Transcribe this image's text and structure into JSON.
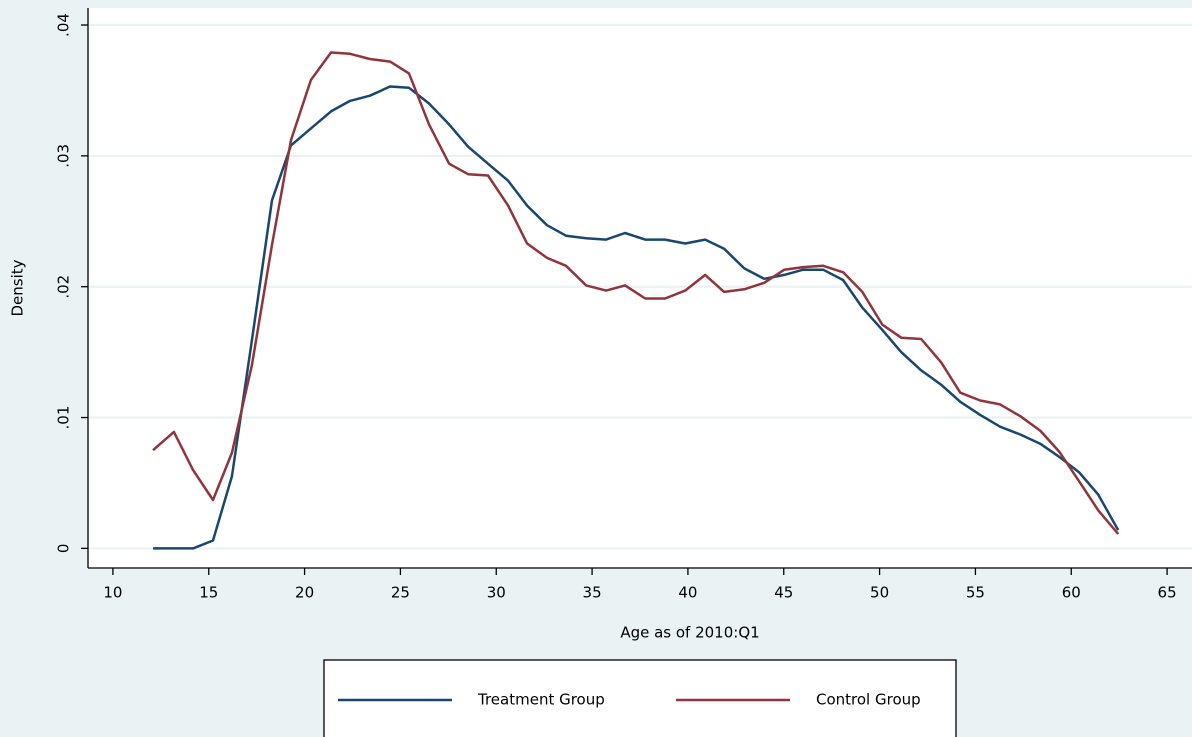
{
  "chart_data": {
    "type": "line",
    "x_label": "Age as of 2010:Q1",
    "y_label": "Density",
    "x": [
      12.09,
      13.18,
      14.18,
      15.22,
      16.21,
      17.25,
      18.3,
      19.29,
      20.33,
      21.38,
      22.37,
      23.41,
      24.46,
      25.45,
      26.49,
      27.54,
      28.53,
      29.57,
      30.62,
      31.61,
      32.65,
      33.64,
      34.69,
      35.73,
      36.72,
      37.77,
      38.81,
      39.86,
      40.9,
      41.89,
      42.94,
      43.98,
      45.03,
      46.01,
      47.06,
      48.1,
      49.1,
      50.14,
      51.13,
      52.17,
      53.22,
      54.21,
      55.25,
      56.29,
      57.34,
      58.38,
      59.37,
      60.42,
      61.41,
      62.45
    ],
    "series": [
      {
        "name": "Treatment Group",
        "color": "#1a476f",
        "values": [
          0,
          0,
          0,
          0.0006,
          0.0055,
          0.0159,
          0.0266,
          0.0308,
          0.0321,
          0.0334,
          0.0342,
          0.0346,
          0.0353,
          0.0352,
          0.034,
          0.0324,
          0.0307,
          0.0294,
          0.0281,
          0.0262,
          0.0247,
          0.0239,
          0.0237,
          0.0236,
          0.0241,
          0.0236,
          0.0236,
          0.0233,
          0.0236,
          0.0229,
          0.0214,
          0.0206,
          0.0209,
          0.0213,
          0.0213,
          0.0205,
          0.0184,
          0.0167,
          0.015,
          0.0136,
          0.0125,
          0.0112,
          0.0102,
          0.0093,
          0.0087,
          0.008,
          0.007,
          0.0058,
          0.0041,
          0.0014
        ]
      },
      {
        "name": "Control Group",
        "color": "#90353b",
        "values": [
          0.0075,
          0.0089,
          0.006,
          0.0037,
          0.0073,
          0.014,
          0.0232,
          0.0312,
          0.0358,
          0.0379,
          0.0378,
          0.0374,
          0.0372,
          0.0363,
          0.0324,
          0.0294,
          0.0286,
          0.0285,
          0.0262,
          0.0233,
          0.0222,
          0.0216,
          0.0201,
          0.0197,
          0.0201,
          0.0191,
          0.0191,
          0.0197,
          0.0209,
          0.0196,
          0.0198,
          0.0203,
          0.0213,
          0.0215,
          0.0216,
          0.0211,
          0.0196,
          0.0171,
          0.0161,
          0.016,
          0.0142,
          0.0119,
          0.0113,
          0.011,
          0.0101,
          0.009,
          0.0074,
          0.0051,
          0.0029,
          0.0011
        ]
      }
    ],
    "xlim": [
      8.7,
      66.3
    ],
    "ylim": [
      -0.0015,
      0.0413
    ],
    "xticks": [
      10,
      15,
      20,
      25,
      30,
      35,
      40,
      45,
      50,
      55,
      60,
      65
    ],
    "yticks": [
      0,
      {
        "value": 0.01,
        "label": ".01"
      },
      {
        "value": 0.02,
        "label": ".02"
      },
      {
        "value": 0.03,
        "label": ".03"
      },
      {
        "value": 0.04,
        "label": ".04"
      }
    ],
    "grid": true,
    "legend": "bottom"
  }
}
